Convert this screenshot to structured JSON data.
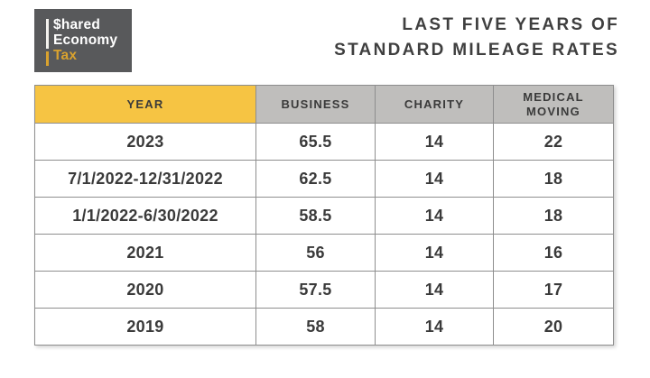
{
  "logo": {
    "line1": "$hared",
    "line2": "Economy",
    "line3": "Tax",
    "bg_color": "#58595B",
    "text_color": "#FFFFFF",
    "accent_color": "#D9A22E"
  },
  "title": {
    "line1": "LAST FIVE YEARS OF",
    "line2": "STANDARD MILEAGE RATES"
  },
  "table": {
    "header_year_bg": "#F6C443",
    "header_bg": "#BFBEBC",
    "border_color": "#8E8E8E",
    "text_color": "#3A3A3A",
    "columns": [
      {
        "label": "YEAR"
      },
      {
        "label": "BUSINESS"
      },
      {
        "label": "CHARITY"
      },
      {
        "label": "MEDICAL MOVING"
      }
    ],
    "rows": [
      [
        "2023",
        "65.5",
        "14",
        "22"
      ],
      [
        "7/1/2022-12/31/2022",
        "62.5",
        "14",
        "18"
      ],
      [
        "1/1/2022-6/30/2022",
        "58.5",
        "14",
        "18"
      ],
      [
        "2021",
        "56",
        "14",
        "16"
      ],
      [
        "2020",
        "57.5",
        "14",
        "17"
      ],
      [
        "2019",
        "58",
        "14",
        "20"
      ]
    ]
  },
  "chart_data": {
    "type": "table",
    "title": "LAST FIVE YEARS OF STANDARD MILEAGE RATES",
    "categories": [
      "2023",
      "7/1/2022-12/31/2022",
      "1/1/2022-6/30/2022",
      "2021",
      "2020",
      "2019"
    ],
    "series": [
      {
        "name": "BUSINESS",
        "values": [
          65.5,
          62.5,
          58.5,
          56,
          57.5,
          58
        ]
      },
      {
        "name": "CHARITY",
        "values": [
          14,
          14,
          14,
          14,
          14,
          14
        ]
      },
      {
        "name": "MEDICAL MOVING",
        "values": [
          22,
          18,
          18,
          16,
          17,
          20
        ]
      }
    ]
  }
}
